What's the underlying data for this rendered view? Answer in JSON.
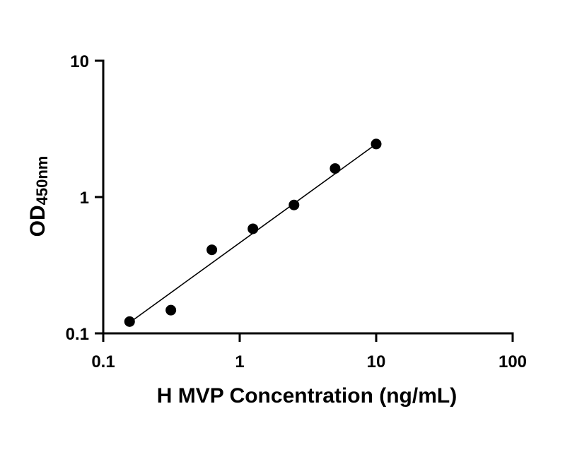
{
  "chart_data": {
    "type": "scatter",
    "xlabel": "H MVP Concentration (ng/mL)",
    "ylabel": {
      "main": "OD",
      "subscript": "450nm"
    },
    "x_scale": "log",
    "y_scale": "log",
    "xlim": [
      0.1,
      100
    ],
    "ylim": [
      0.1,
      10
    ],
    "x_ticks": [
      {
        "value": 0.1,
        "label": "0.1"
      },
      {
        "value": 1,
        "label": "1"
      },
      {
        "value": 10,
        "label": "10"
      },
      {
        "value": 100,
        "label": "100"
      }
    ],
    "y_ticks": [
      {
        "value": 0.1,
        "label": "0.1"
      },
      {
        "value": 1,
        "label": "1"
      },
      {
        "value": 10,
        "label": "10"
      }
    ],
    "points": [
      {
        "x": 0.156,
        "y": 0.122
      },
      {
        "x": 0.313,
        "y": 0.148
      },
      {
        "x": 0.625,
        "y": 0.41
      },
      {
        "x": 1.25,
        "y": 0.585
      },
      {
        "x": 2.5,
        "y": 0.875
      },
      {
        "x": 5,
        "y": 1.62
      },
      {
        "x": 10,
        "y": 2.45
      }
    ],
    "fit_line": {
      "x": [
        0.156,
        10
      ],
      "y": [
        0.12,
        2.45
      ]
    },
    "grid": false,
    "colors": {
      "marker": "#000000",
      "line": "#000000",
      "axis": "#000000"
    }
  }
}
